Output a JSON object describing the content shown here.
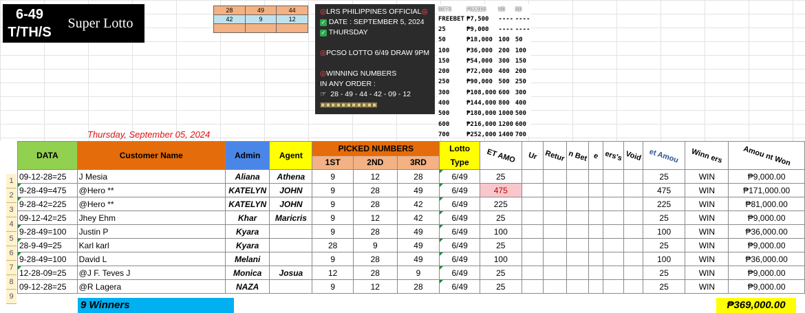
{
  "logo": {
    "line1": "6-49",
    "line2": "T/TH/S",
    "title": "Super Lotto"
  },
  "mini_grid": [
    [
      "28",
      "49",
      "44"
    ],
    [
      "42",
      "9",
      "12"
    ],
    [
      "",
      "",
      ""
    ]
  ],
  "info_box": {
    "lines": [
      "LRS PHILIPPINES OFFICIAL",
      "DATE : SEPTEMBER 5, 2024",
      "THURSDAY",
      "PCSO LOTTO 6/49 DRAW 9PM",
      "WINNING NUMBERS",
      "IN ANY ORDER :",
      "28 - 49 - 44 - 42 - 09 - 12"
    ]
  },
  "prize_table": {
    "headers": [
      "BETS",
      "PRIZES",
      "WB",
      "RB"
    ],
    "rows": [
      [
        "FREEBET",
        "₱7,500",
        "----",
        "----"
      ],
      [
        "25",
        "₱9,000",
        "----",
        "----"
      ],
      [
        "50",
        "₱18,000",
        "100",
        "50"
      ],
      [
        "100",
        "₱36,000",
        "200",
        "100"
      ],
      [
        "150",
        "₱54,000",
        "300",
        "150"
      ],
      [
        "200",
        "₱72,000",
        "400",
        "200"
      ],
      [
        "250",
        "₱90,000",
        "500",
        "250"
      ],
      [
        "300",
        "₱108,000",
        "600",
        "300"
      ],
      [
        "400",
        "₱144,000",
        "800",
        "400"
      ],
      [
        "500",
        "₱180,000",
        "1000",
        "500"
      ],
      [
        "600",
        "₱216,000",
        "1200",
        "600"
      ],
      [
        "700",
        "₱252,000",
        "1400",
        "700"
      ]
    ]
  },
  "date_line": "Thursday, September 05, 2024",
  "table": {
    "headers": {
      "data": "DATA",
      "customer": "Customer Name",
      "admin": "Admin",
      "agent": "Agent",
      "picked": "PICKED NUMBERS",
      "first": "1ST",
      "second": "2ND",
      "third": "3RD",
      "lotto_type": "Lotto Type",
      "bet_amount": "ET AMO",
      "un": "Ur",
      "return": "Retur",
      "n_bet": "n Bet",
      "e": "e",
      "ers": "ers's",
      "void": "Void",
      "bet_amount2": "et Amou",
      "winners": "Winn ers",
      "amount_won": "Amou nt Won"
    },
    "rows": [
      {
        "num": "1",
        "data": "09-12-28=25",
        "customer": "J Mesia",
        "admin": "Aliana",
        "agent": "Athena",
        "n1": "9",
        "n2": "12",
        "n3": "28",
        "type": "6/49",
        "bet": "25",
        "amount": "25",
        "result": "WIN",
        "won": "₱9,000.00"
      },
      {
        "num": "2",
        "data": "9-28-49=475",
        "customer": "@Hero **",
        "admin": "KATELYN",
        "agent": "JOHN",
        "n1": "9",
        "n2": "28",
        "n3": "49",
        "type": "6/49",
        "bet": "475",
        "amount": "475",
        "result": "WIN",
        "won": "₱171,000.00"
      },
      {
        "num": "3",
        "data": "9-28-42=225",
        "customer": "@Hero **",
        "admin": "KATELYN",
        "agent": "JOHN",
        "n1": "9",
        "n2": "28",
        "n3": "42",
        "type": "6/49",
        "bet": "225",
        "amount": "225",
        "result": "WIN",
        "won": "₱81,000.00"
      },
      {
        "num": "4",
        "data": "09-12-42=25",
        "customer": "Jhey Ehm",
        "admin": "Khar",
        "agent": "Maricris",
        "n1": "9",
        "n2": "12",
        "n3": "42",
        "type": "6/49",
        "bet": "25",
        "amount": "25",
        "result": "WIN",
        "won": "₱9,000.00"
      },
      {
        "num": "5",
        "data": "9-28-49=100",
        "customer": "Justin P",
        "admin": "Kyara",
        "agent": "",
        "n1": "9",
        "n2": "28",
        "n3": "49",
        "type": "6/49",
        "bet": "100",
        "amount": "100",
        "result": "WIN",
        "won": "₱36,000.00"
      },
      {
        "num": "6",
        "data": "28-9-49=25",
        "customer": "Karl karl",
        "admin": "Kyara",
        "agent": "",
        "n1": "28",
        "n2": "9",
        "n3": "49",
        "type": "6/49",
        "bet": "25",
        "amount": "25",
        "result": "WIN",
        "won": "₱9,000.00"
      },
      {
        "num": "7",
        "data": "9-28-49=100",
        "customer": "David L",
        "admin": "Melani",
        "agent": "",
        "n1": "9",
        "n2": "28",
        "n3": "49",
        "type": "6/49",
        "bet": "100",
        "amount": "100",
        "result": "WIN",
        "won": "₱36,000.00"
      },
      {
        "num": "8",
        "data": "12-28-09=25",
        "customer": "@J F. Teves J",
        "admin": "Monica",
        "agent": "Josua",
        "n1": "12",
        "n2": "28",
        "n3": "9",
        "type": "6/49",
        "bet": "25",
        "amount": "25",
        "result": "WIN",
        "won": "₱9,000.00"
      },
      {
        "num": "9",
        "data": "09-12-28=25",
        "customer": "@R Lagera",
        "admin": "NAZA",
        "agent": "",
        "n1": "9",
        "n2": "12",
        "n3": "28",
        "type": "6/49",
        "bet": "25",
        "amount": "25",
        "result": "WIN",
        "won": "₱9,000.00"
      }
    ]
  },
  "footer": {
    "winners": "9 Winners",
    "total": "₱369,000.00"
  },
  "colors": {
    "green": "#92d050",
    "orange": "#e46c0a",
    "blue": "#4a86e8",
    "yellow": "#ffff00",
    "peach": "#f4b183",
    "cyan": "#00b0f0"
  }
}
